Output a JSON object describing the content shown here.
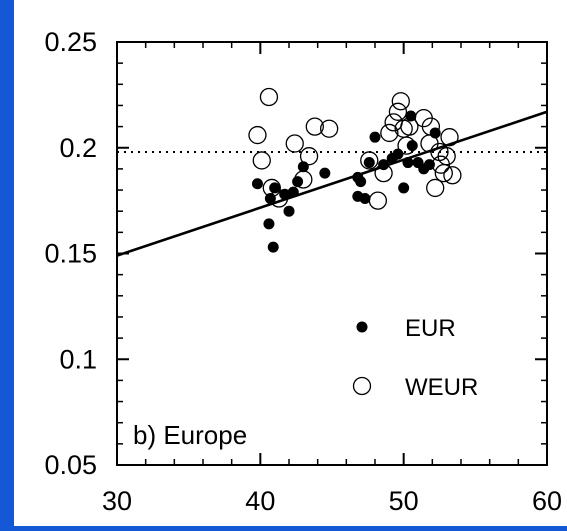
{
  "colors": {
    "frame": "#1458d6",
    "background": "#ffffff",
    "ink": "#000000"
  },
  "chart_data": {
    "type": "scatter",
    "annotation": "b) Europe",
    "xlim": [
      30,
      60
    ],
    "ylim": [
      0.05,
      0.25
    ],
    "x_ticks": [
      {
        "value": 30,
        "label": "30"
      },
      {
        "value": 40,
        "label": "40"
      },
      {
        "value": 50,
        "label": "50"
      },
      {
        "value": 60,
        "label": "60"
      }
    ],
    "y_ticks": [
      {
        "value": 0.05,
        "label": "0.05"
      },
      {
        "value": 0.1,
        "label": "0.1"
      },
      {
        "value": 0.15,
        "label": "0.15"
      },
      {
        "value": 0.2,
        "label": "0.2"
      },
      {
        "value": 0.25,
        "label": "0.25"
      }
    ],
    "grid": false,
    "legend_position": "bottom-right",
    "reference_line": {
      "y": 0.198,
      "style": "dotted"
    },
    "fit_line": {
      "x": [
        30,
        60
      ],
      "y": [
        0.149,
        0.217
      ],
      "style": "solid"
    },
    "series": [
      {
        "name": "EUR",
        "marker": "filled-circle",
        "points": [
          [
            39.8,
            0.183
          ],
          [
            40.7,
            0.176
          ],
          [
            41.0,
            0.181
          ],
          [
            41.7,
            0.178
          ],
          [
            40.6,
            0.164
          ],
          [
            40.9,
            0.153
          ],
          [
            42.0,
            0.17
          ],
          [
            42.3,
            0.179
          ],
          [
            42.6,
            0.184
          ],
          [
            43.0,
            0.191
          ],
          [
            44.5,
            0.188
          ],
          [
            46.8,
            0.186
          ],
          [
            47.0,
            0.184
          ],
          [
            46.8,
            0.177
          ],
          [
            47.3,
            0.176
          ],
          [
            47.6,
            0.193
          ],
          [
            48.0,
            0.205
          ],
          [
            48.6,
            0.192
          ],
          [
            49.2,
            0.195
          ],
          [
            49.6,
            0.197
          ],
          [
            50.0,
            0.181
          ],
          [
            50.3,
            0.193
          ],
          [
            50.5,
            0.215
          ],
          [
            50.6,
            0.201
          ],
          [
            51.0,
            0.193
          ],
          [
            51.4,
            0.19
          ],
          [
            51.8,
            0.192
          ],
          [
            52.2,
            0.207
          ]
        ]
      },
      {
        "name": "WEUR",
        "marker": "open-circle",
        "points": [
          [
            39.8,
            0.206
          ],
          [
            40.1,
            0.194
          ],
          [
            40.6,
            0.224
          ],
          [
            40.8,
            0.181
          ],
          [
            41.3,
            0.176
          ],
          [
            42.4,
            0.202
          ],
          [
            43.0,
            0.185
          ],
          [
            43.4,
            0.196
          ],
          [
            43.8,
            0.21
          ],
          [
            44.8,
            0.209
          ],
          [
            47.6,
            0.194
          ],
          [
            48.2,
            0.175
          ],
          [
            48.6,
            0.188
          ],
          [
            49.0,
            0.207
          ],
          [
            49.3,
            0.212
          ],
          [
            49.6,
            0.217
          ],
          [
            49.8,
            0.222
          ],
          [
            50.0,
            0.209
          ],
          [
            50.2,
            0.201
          ],
          [
            50.4,
            0.21
          ],
          [
            51.4,
            0.214
          ],
          [
            51.8,
            0.202
          ],
          [
            51.9,
            0.21
          ],
          [
            52.2,
            0.181
          ],
          [
            52.5,
            0.198
          ],
          [
            52.8,
            0.188
          ],
          [
            53.0,
            0.196
          ],
          [
            53.2,
            0.205
          ],
          [
            53.4,
            0.187
          ],
          [
            52.6,
            0.192
          ]
        ]
      }
    ]
  }
}
